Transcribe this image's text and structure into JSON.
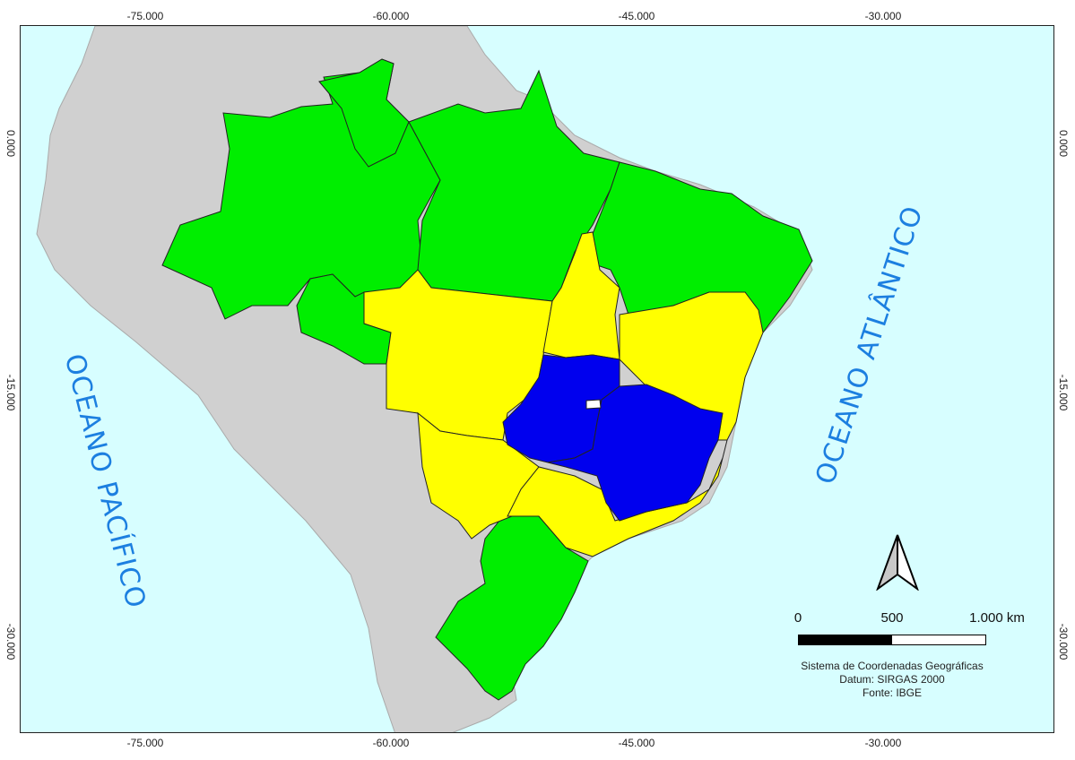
{
  "map": {
    "colors": {
      "ocean": "#d7feff",
      "land_other": "#d0d0d0",
      "region_green": "#00ee00",
      "region_yellow": "#ffff00",
      "region_blue": "#0000ee",
      "district_white": "#ffffff"
    },
    "coordinates": {
      "top": [
        "-75.000",
        "-60.000",
        "-45.000",
        "-30.000"
      ],
      "bottom": [
        "-75.000",
        "-60.000",
        "-45.000",
        "-30.000"
      ],
      "left": [
        "0.000",
        "-15.000",
        "-30.000"
      ],
      "right": [
        "0.000",
        "-15.000",
        "-30.000"
      ]
    },
    "ocean_labels": {
      "pacific": "OCEANO PACÍFICO",
      "atlantic": "OCEANO ATLÂNTICO"
    },
    "scale": {
      "labels": [
        "0",
        "500",
        "1.000 km"
      ]
    },
    "credits": {
      "line1": "Sistema de Coordenadas Geográficas",
      "line2": "Datum: SIRGAS 2000",
      "line3": "Fonte: IBGE"
    },
    "north_arrow_icon": "north-arrow-icon"
  }
}
